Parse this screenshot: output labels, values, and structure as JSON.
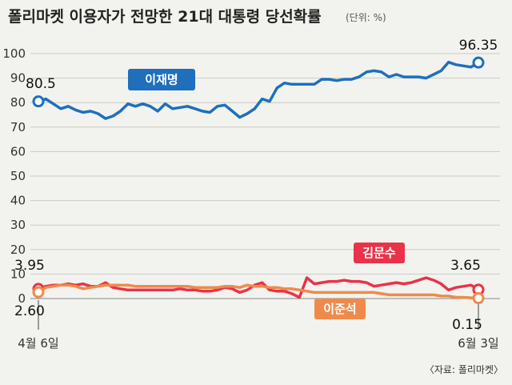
{
  "chart_data": {
    "type": "line",
    "title": "폴리마켓 이용자가 전망한 21대 대통령 당선확률",
    "unit": "(단위: %)",
    "source": "〈자료: 폴리마켓〉",
    "x_labels": [
      "4월 6일",
      "6월 3일"
    ],
    "ylim": [
      0,
      100
    ],
    "yticks": [
      0,
      10,
      20,
      30,
      40,
      50,
      60,
      70,
      80,
      90,
      100
    ],
    "grid": true,
    "series": [
      {
        "name": "이재명",
        "color": "#1f6fbd",
        "start_label": "80.5",
        "end_label": "96.35",
        "values": [
          80.5,
          81.5,
          79.5,
          77.5,
          78.5,
          77,
          76,
          76.5,
          75.5,
          73.5,
          74.5,
          76.5,
          79.5,
          78.5,
          79.5,
          78.5,
          76.5,
          79.5,
          77.5,
          78,
          78.5,
          77.5,
          76.5,
          76,
          78.5,
          79,
          76.5,
          74,
          75.5,
          77.5,
          81.5,
          80.5,
          86,
          88,
          87.5,
          87.5,
          87.5,
          87.5,
          89.5,
          89.5,
          89,
          89.5,
          89.5,
          90.5,
          92.5,
          93,
          92.5,
          90.5,
          91.5,
          90.5,
          90.5,
          90.5,
          90,
          91.5,
          93,
          96.5,
          95.5,
          95,
          94.5,
          96.35
        ]
      },
      {
        "name": "김문수",
        "color": "#e8334a",
        "start_label": "3.95",
        "end_label": "3.65",
        "values": [
          3.95,
          5,
          5.5,
          5.5,
          6,
          5.5,
          6,
          5,
          5,
          6.5,
          4.5,
          4,
          3.5,
          3.5,
          3.5,
          3.5,
          3.5,
          3.5,
          3.5,
          4,
          3.5,
          3.5,
          3,
          3,
          3.5,
          4.5,
          4,
          2.5,
          3.5,
          5.5,
          6.5,
          3.5,
          3,
          3,
          2,
          0.5,
          8.5,
          6,
          6.5,
          7,
          7,
          7.5,
          7,
          7,
          6.5,
          5,
          5.5,
          6,
          6.5,
          6,
          6.5,
          7.5,
          8.5,
          7.5,
          6,
          3.5,
          4.5,
          5,
          5.5,
          3.65
        ]
      },
      {
        "name": "이준석",
        "color": "#f08a4b",
        "start_label": "2.60",
        "end_label": "0.15",
        "values": [
          2.6,
          4.5,
          5,
          5.5,
          5.5,
          5,
          4,
          4.5,
          5,
          5.5,
          5.5,
          5.5,
          5.5,
          5,
          5,
          5,
          5,
          5,
          5,
          5,
          5,
          4.5,
          4.5,
          4.5,
          4.5,
          5,
          5,
          4.5,
          5.5,
          5,
          5,
          4.5,
          4.5,
          4,
          4,
          3.5,
          3,
          2.5,
          2.5,
          2.5,
          2.5,
          2.5,
          2.5,
          2.5,
          2.5,
          2.5,
          2,
          1.5,
          1.5,
          1.5,
          1.5,
          1.5,
          1.5,
          1.5,
          1,
          1,
          0.5,
          0.5,
          0.3,
          0.15
        ]
      }
    ]
  }
}
